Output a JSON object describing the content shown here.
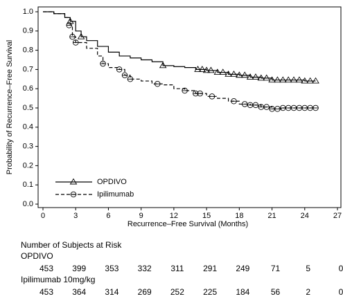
{
  "chart_data": {
    "type": "km",
    "xlabel": "Recurrence–Free Survival (Months)",
    "ylabel": "Probability of Recurrence–Free Survival",
    "xlim": [
      0,
      27
    ],
    "xticks": [
      0,
      3,
      6,
      9,
      12,
      15,
      18,
      21,
      24,
      27
    ],
    "ylim": [
      0,
      1
    ],
    "yticks": [
      {
        "value": 0,
        "label": "0.0"
      },
      0.1,
      0.2,
      0.3,
      0.4,
      0.5,
      0.6,
      0.7,
      0.8,
      0.9,
      {
        "value": 1,
        "label": "1.0"
      }
    ],
    "legend": "lower left",
    "series": [
      {
        "name": "OPDIVO",
        "color": "#000000",
        "dash": false,
        "marker": "triangle",
        "x": [
          0,
          1,
          2,
          2.5,
          3,
          3.5,
          4,
          5,
          6,
          7,
          8,
          9,
          10,
          11,
          12,
          13,
          14,
          15,
          16,
          17,
          18,
          19,
          20,
          21,
          22,
          23,
          24,
          25
        ],
        "values": [
          1.0,
          0.99,
          0.97,
          0.95,
          0.9,
          0.87,
          0.85,
          0.82,
          0.79,
          0.77,
          0.76,
          0.75,
          0.74,
          0.72,
          0.715,
          0.71,
          0.7,
          0.695,
          0.685,
          0.675,
          0.67,
          0.66,
          0.655,
          0.645,
          0.645,
          0.645,
          0.64,
          0.64
        ],
        "censored_x": [
          2.5,
          3.5,
          11,
          14.2,
          14.6,
          15,
          15.4,
          16,
          16.5,
          17,
          17.5,
          18,
          18.5,
          19,
          19.5,
          20,
          20.5,
          21,
          21.5,
          22,
          22.5,
          23,
          23.5,
          24,
          24.5,
          25
        ],
        "censored_values": [
          0.95,
          0.87,
          0.72,
          0.7,
          0.7,
          0.695,
          0.695,
          0.685,
          0.685,
          0.675,
          0.675,
          0.67,
          0.67,
          0.66,
          0.66,
          0.655,
          0.655,
          0.645,
          0.645,
          0.645,
          0.645,
          0.645,
          0.645,
          0.64,
          0.64,
          0.64
        ]
      },
      {
        "name": "Ipilimumab",
        "color": "#000000",
        "dash": true,
        "marker": "circle",
        "x": [
          0,
          1,
          2,
          2.5,
          2.7,
          3,
          4,
          5,
          5.5,
          6,
          7,
          7.5,
          8,
          9,
          10,
          11,
          12,
          13,
          14,
          15,
          16,
          17,
          18,
          19,
          20,
          21,
          22,
          23,
          24,
          25
        ],
        "values": [
          1.0,
          0.99,
          0.97,
          0.93,
          0.87,
          0.84,
          0.81,
          0.77,
          0.73,
          0.71,
          0.7,
          0.67,
          0.65,
          0.64,
          0.625,
          0.62,
          0.6,
          0.59,
          0.575,
          0.56,
          0.55,
          0.535,
          0.52,
          0.515,
          0.505,
          0.495,
          0.5,
          0.5,
          0.5,
          0.5
        ],
        "censored_x": [
          2.4,
          2.7,
          3,
          5.5,
          7,
          7.5,
          8,
          10.5,
          13,
          14,
          14.4,
          15.5,
          17.5,
          18.5,
          19,
          19.5,
          20,
          20.5,
          21,
          21.5,
          22,
          22.5,
          23,
          23.5,
          24,
          24.5,
          25
        ],
        "censored_values": [
          0.93,
          0.87,
          0.84,
          0.73,
          0.7,
          0.67,
          0.65,
          0.625,
          0.59,
          0.575,
          0.575,
          0.56,
          0.535,
          0.52,
          0.515,
          0.515,
          0.505,
          0.505,
          0.495,
          0.495,
          0.5,
          0.5,
          0.5,
          0.5,
          0.5,
          0.5,
          0.5
        ]
      }
    ]
  },
  "risk_table": {
    "title": "Number of Subjects at Risk",
    "groups": [
      {
        "label": "OPDIVO",
        "counts": [
          "453",
          "399",
          "353",
          "332",
          "311",
          "291",
          "249",
          "71",
          "5",
          "0"
        ]
      },
      {
        "label": "Ipilimumab 10mg/kg",
        "counts": [
          "453",
          "364",
          "314",
          "269",
          "252",
          "225",
          "184",
          "56",
          "2",
          "0"
        ]
      }
    ]
  }
}
